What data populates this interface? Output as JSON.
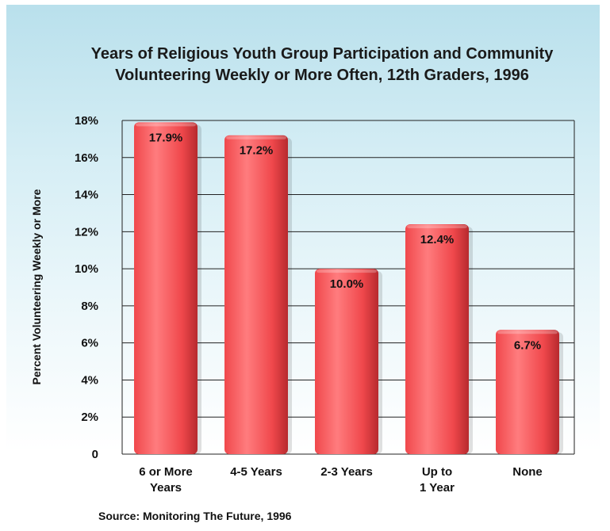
{
  "chart_data": {
    "type": "bar",
    "title": [
      "Years of Religious Youth Group Participation and Community",
      "Volunteering Weekly or More Often, 12th Graders, 1996"
    ],
    "ylabel": "Percent Volunteering Weekly or More",
    "xlabel": "",
    "categories": [
      [
        "6 or More",
        "Years"
      ],
      [
        "4-5 Years"
      ],
      [
        "2-3 Years"
      ],
      [
        "Up to",
        "1 Year"
      ],
      [
        "None"
      ]
    ],
    "values": [
      17.9,
      17.2,
      10.0,
      12.4,
      6.7
    ],
    "data_labels": [
      "17.9%",
      "17.2%",
      "10.0%",
      "12.4%",
      "6.7%"
    ],
    "ylim": [
      0,
      18
    ],
    "yticks": [
      0,
      2,
      4,
      6,
      8,
      10,
      12,
      14,
      16,
      18
    ],
    "ytick_labels": [
      "0",
      "2%",
      "4%",
      "6%",
      "8%",
      "10%",
      "12%",
      "14%",
      "16%",
      "18%"
    ],
    "grid": true,
    "source": "Source: Monitoring The Future, 1996",
    "colors": {
      "bar": "#f0484c",
      "bar_light": "#ff7c7e",
      "bar_dark": "#b72a2e",
      "grid": "#222222"
    }
  }
}
